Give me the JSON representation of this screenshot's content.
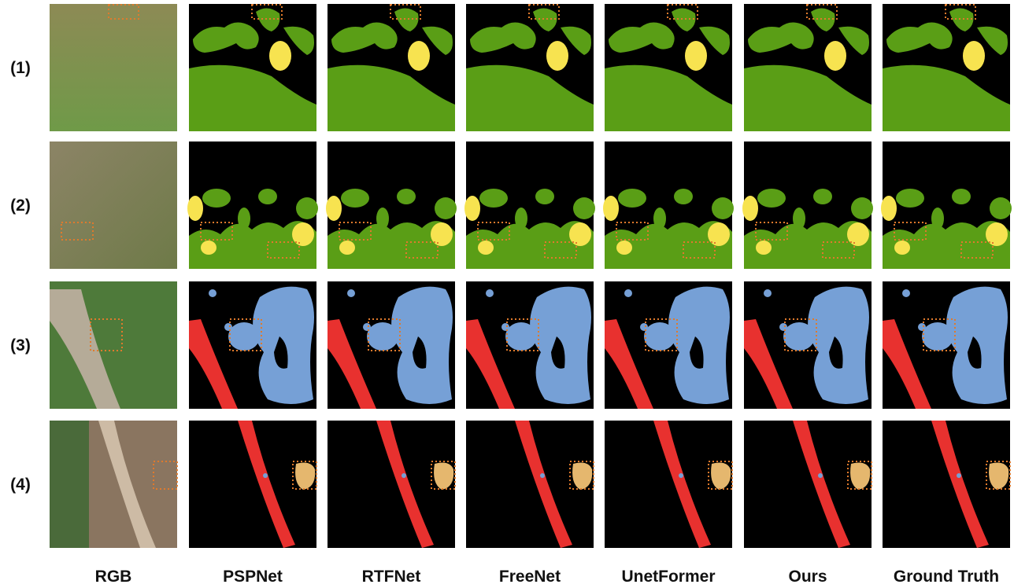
{
  "row_labels": [
    "(1)",
    "(2)",
    "(3)",
    "(4)"
  ],
  "column_labels": [
    "RGB",
    "PSPNet",
    "RTFNet",
    "FreeNet",
    "UnetFormer",
    "Ours",
    "Ground Truth"
  ]
}
